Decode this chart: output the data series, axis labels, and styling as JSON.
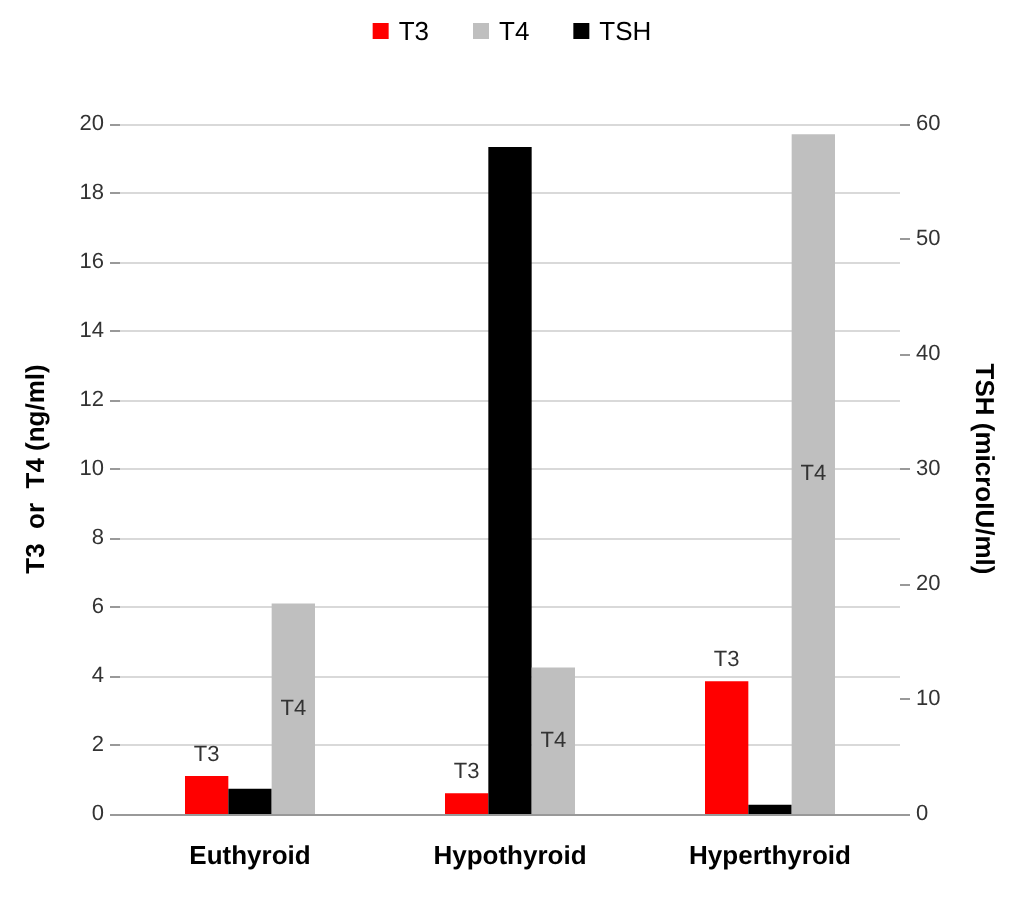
{
  "chart_data": {
    "type": "bar",
    "ylabel": "T3  or  T4 (ng/ml)",
    "y2label": "TSH (microIU/ml)",
    "categories": [
      "Euthyroid",
      "Hypothyroid",
      "Hyperthyroid"
    ],
    "series": [
      {
        "name": "T3",
        "color": "#ff0000",
        "values": [
          1.1,
          0.6,
          3.85
        ],
        "value_labels": [
          "T3",
          "T3",
          "T3"
        ]
      },
      {
        "name": "TSH",
        "color": "#000000",
        "values": [
          2.2,
          58,
          0.8
        ],
        "axis": "y2"
      },
      {
        "name": "T4",
        "color": "#bfbfbf",
        "values": [
          6.1,
          4.25,
          19.7
        ],
        "value_labels": [
          "T4",
          "T4",
          "T4"
        ]
      }
    ],
    "ylim": [
      0,
      20
    ],
    "yticks": [
      0,
      2,
      4,
      6,
      8,
      10,
      12,
      14,
      16,
      18,
      20
    ],
    "y2lim": [
      0,
      60
    ],
    "y2ticks": [
      0,
      10,
      20,
      30,
      40,
      50,
      60
    ],
    "grid": "y",
    "legend": "top"
  }
}
